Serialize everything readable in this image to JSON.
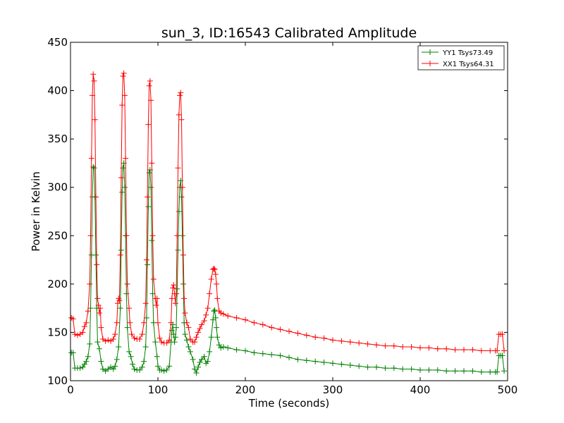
{
  "chart_data": {
    "type": "line",
    "title": "sun_3, ID:16543 Calibrated Amplitude",
    "xlabel": "Time (seconds)",
    "ylabel": "Power in Kelvin",
    "xlim": [
      0,
      500
    ],
    "ylim": [
      100,
      450
    ],
    "xticks": [
      0,
      100,
      200,
      300,
      400,
      500
    ],
    "yticks": [
      100,
      150,
      200,
      250,
      300,
      350,
      400,
      450
    ],
    "grid": false,
    "legend_position": "top-right",
    "marker": "+",
    "series": [
      {
        "name": "YY1 Tsys73.49",
        "color": "#008000",
        "points": [
          [
            1,
            129
          ],
          [
            3,
            129
          ],
          [
            5,
            113
          ],
          [
            8,
            113
          ],
          [
            11,
            113
          ],
          [
            14,
            114
          ],
          [
            16,
            117
          ],
          [
            18,
            120
          ],
          [
            20,
            125
          ],
          [
            22,
            138
          ],
          [
            23,
            175
          ],
          [
            24,
            230
          ],
          [
            25,
            290
          ],
          [
            26,
            321
          ],
          [
            27,
            320
          ],
          [
            28,
            290
          ],
          [
            29,
            230
          ],
          [
            30,
            175
          ],
          [
            31,
            140
          ],
          [
            33,
            133
          ],
          [
            35,
            120
          ],
          [
            37,
            112
          ],
          [
            40,
            110
          ],
          [
            43,
            112
          ],
          [
            46,
            114
          ],
          [
            49,
            112
          ],
          [
            51,
            115
          ],
          [
            53,
            122
          ],
          [
            55,
            135
          ],
          [
            57,
            175
          ],
          [
            58,
            235
          ],
          [
            59,
            295
          ],
          [
            60,
            320
          ],
          [
            61,
            325
          ],
          [
            62,
            300
          ],
          [
            63,
            250
          ],
          [
            64,
            190
          ],
          [
            65,
            155
          ],
          [
            67,
            130
          ],
          [
            69,
            125
          ],
          [
            71,
            117
          ],
          [
            73,
            112
          ],
          [
            76,
            111
          ],
          [
            79,
            111
          ],
          [
            82,
            114
          ],
          [
            84,
            120
          ],
          [
            86,
            135
          ],
          [
            87,
            165
          ],
          [
            88,
            220
          ],
          [
            89,
            280
          ],
          [
            90,
            315
          ],
          [
            91,
            318
          ],
          [
            92,
            300
          ],
          [
            93,
            245
          ],
          [
            94,
            190
          ],
          [
            95,
            160
          ],
          [
            97,
            140
          ],
          [
            99,
            125
          ],
          [
            100,
            115
          ],
          [
            102,
            111
          ],
          [
            104,
            111
          ],
          [
            107,
            110
          ],
          [
            110,
            111
          ],
          [
            113,
            115
          ],
          [
            115,
            140
          ],
          [
            116,
            152
          ],
          [
            117,
            158
          ],
          [
            118,
            148
          ],
          [
            119,
            140
          ],
          [
            120,
            145
          ],
          [
            121,
            155
          ],
          [
            122,
            195
          ],
          [
            123,
            235
          ],
          [
            124,
            275
          ],
          [
            125,
            300
          ],
          [
            126,
            307
          ],
          [
            127,
            290
          ],
          [
            128,
            250
          ],
          [
            129,
            200
          ],
          [
            130,
            160
          ],
          [
            131,
            148
          ],
          [
            133,
            142
          ],
          [
            135,
            135
          ],
          [
            137,
            130
          ],
          [
            140,
            122
          ],
          [
            142,
            112
          ],
          [
            144,
            108
          ],
          [
            146,
            114
          ],
          [
            148,
            119
          ],
          [
            150,
            122
          ],
          [
            153,
            125
          ],
          [
            155,
            118
          ],
          [
            157,
            120
          ],
          [
            159,
            130
          ],
          [
            161,
            145
          ],
          [
            163,
            163
          ],
          [
            164,
            172
          ],
          [
            165,
            173
          ],
          [
            166,
            165
          ],
          [
            167,
            155
          ],
          [
            168,
            145
          ],
          [
            170,
            137
          ],
          [
            172,
            134
          ],
          [
            175,
            135
          ],
          [
            180,
            134
          ],
          [
            190,
            132
          ],
          [
            200,
            131
          ],
          [
            210,
            129
          ],
          [
            220,
            128
          ],
          [
            230,
            127
          ],
          [
            240,
            126
          ],
          [
            250,
            124
          ],
          [
            260,
            122
          ],
          [
            270,
            121
          ],
          [
            280,
            120
          ],
          [
            290,
            119
          ],
          [
            300,
            118
          ],
          [
            310,
            117
          ],
          [
            320,
            116
          ],
          [
            330,
            115
          ],
          [
            340,
            114
          ],
          [
            350,
            114
          ],
          [
            360,
            113
          ],
          [
            370,
            113
          ],
          [
            380,
            112
          ],
          [
            390,
            112
          ],
          [
            400,
            111
          ],
          [
            410,
            111
          ],
          [
            420,
            111
          ],
          [
            430,
            110
          ],
          [
            440,
            110
          ],
          [
            450,
            110
          ],
          [
            460,
            110
          ],
          [
            470,
            109
          ],
          [
            480,
            109
          ],
          [
            486,
            109
          ],
          [
            488,
            109
          ],
          [
            490,
            126
          ],
          [
            492,
            126
          ],
          [
            494,
            126
          ],
          [
            496,
            110
          ]
        ]
      },
      {
        "name": "XX1 Tsys64.31",
        "color": "#ff0000",
        "points": [
          [
            1,
            165
          ],
          [
            3,
            164
          ],
          [
            5,
            148
          ],
          [
            8,
            147
          ],
          [
            11,
            148
          ],
          [
            14,
            150
          ],
          [
            16,
            156
          ],
          [
            18,
            160
          ],
          [
            20,
            172
          ],
          [
            22,
            200
          ],
          [
            23,
            250
          ],
          [
            24,
            330
          ],
          [
            25,
            395
          ],
          [
            26,
            417
          ],
          [
            27,
            410
          ],
          [
            28,
            370
          ],
          [
            29,
            290
          ],
          [
            30,
            220
          ],
          [
            31,
            185
          ],
          [
            32,
            178
          ],
          [
            33,
            170
          ],
          [
            34,
            175
          ],
          [
            35,
            155
          ],
          [
            37,
            143
          ],
          [
            40,
            141
          ],
          [
            43,
            142
          ],
          [
            46,
            141
          ],
          [
            49,
            143
          ],
          [
            51,
            148
          ],
          [
            53,
            160
          ],
          [
            54,
            180
          ],
          [
            55,
            185
          ],
          [
            56,
            183
          ],
          [
            57,
            230
          ],
          [
            58,
            310
          ],
          [
            59,
            385
          ],
          [
            60,
            415
          ],
          [
            61,
            418
          ],
          [
            62,
            395
          ],
          [
            63,
            330
          ],
          [
            64,
            250
          ],
          [
            65,
            200
          ],
          [
            67,
            175
          ],
          [
            68,
            160
          ],
          [
            70,
            148
          ],
          [
            73,
            144
          ],
          [
            76,
            143
          ],
          [
            79,
            143
          ],
          [
            82,
            148
          ],
          [
            84,
            160
          ],
          [
            86,
            180
          ],
          [
            87,
            225
          ],
          [
            88,
            290
          ],
          [
            89,
            365
          ],
          [
            90,
            405
          ],
          [
            91,
            410
          ],
          [
            92,
            390
          ],
          [
            93,
            325
          ],
          [
            94,
            250
          ],
          [
            95,
            205
          ],
          [
            97,
            185
          ],
          [
            98,
            178
          ],
          [
            99,
            185
          ],
          [
            100,
            160
          ],
          [
            102,
            144
          ],
          [
            104,
            140
          ],
          [
            107,
            139
          ],
          [
            110,
            139
          ],
          [
            113,
            142
          ],
          [
            115,
            160
          ],
          [
            116,
            185
          ],
          [
            117,
            196
          ],
          [
            118,
            199
          ],
          [
            119,
            190
          ],
          [
            120,
            180
          ],
          [
            121,
            190
          ],
          [
            122,
            250
          ],
          [
            123,
            320
          ],
          [
            124,
            375
          ],
          [
            125,
            395
          ],
          [
            126,
            398
          ],
          [
            127,
            370
          ],
          [
            128,
            300
          ],
          [
            129,
            230
          ],
          [
            130,
            185
          ],
          [
            131,
            170
          ],
          [
            133,
            160
          ],
          [
            135,
            155
          ],
          [
            137,
            143
          ],
          [
            140,
            140
          ],
          [
            142,
            140
          ],
          [
            144,
            145
          ],
          [
            146,
            150
          ],
          [
            148,
            154
          ],
          [
            150,
            158
          ],
          [
            153,
            162
          ],
          [
            155,
            168
          ],
          [
            157,
            175
          ],
          [
            159,
            190
          ],
          [
            161,
            205
          ],
          [
            163,
            215
          ],
          [
            164,
            216
          ],
          [
            165,
            215
          ],
          [
            166,
            210
          ],
          [
            167,
            200
          ],
          [
            168,
            185
          ],
          [
            170,
            172
          ],
          [
            172,
            170
          ],
          [
            175,
            169
          ],
          [
            180,
            167
          ],
          [
            190,
            165
          ],
          [
            200,
            163
          ],
          [
            210,
            160
          ],
          [
            220,
            158
          ],
          [
            230,
            155
          ],
          [
            240,
            153
          ],
          [
            250,
            151
          ],
          [
            260,
            149
          ],
          [
            270,
            147
          ],
          [
            280,
            145
          ],
          [
            290,
            144
          ],
          [
            300,
            142
          ],
          [
            310,
            141
          ],
          [
            320,
            140
          ],
          [
            330,
            139
          ],
          [
            340,
            138
          ],
          [
            350,
            137
          ],
          [
            360,
            136
          ],
          [
            370,
            136
          ],
          [
            380,
            135
          ],
          [
            390,
            135
          ],
          [
            400,
            134
          ],
          [
            410,
            134
          ],
          [
            420,
            133
          ],
          [
            430,
            133
          ],
          [
            440,
            132
          ],
          [
            450,
            132
          ],
          [
            460,
            132
          ],
          [
            470,
            131
          ],
          [
            480,
            131
          ],
          [
            486,
            131
          ],
          [
            488,
            131
          ],
          [
            490,
            148
          ],
          [
            492,
            148
          ],
          [
            494,
            148
          ],
          [
            496,
            131
          ]
        ]
      }
    ]
  }
}
